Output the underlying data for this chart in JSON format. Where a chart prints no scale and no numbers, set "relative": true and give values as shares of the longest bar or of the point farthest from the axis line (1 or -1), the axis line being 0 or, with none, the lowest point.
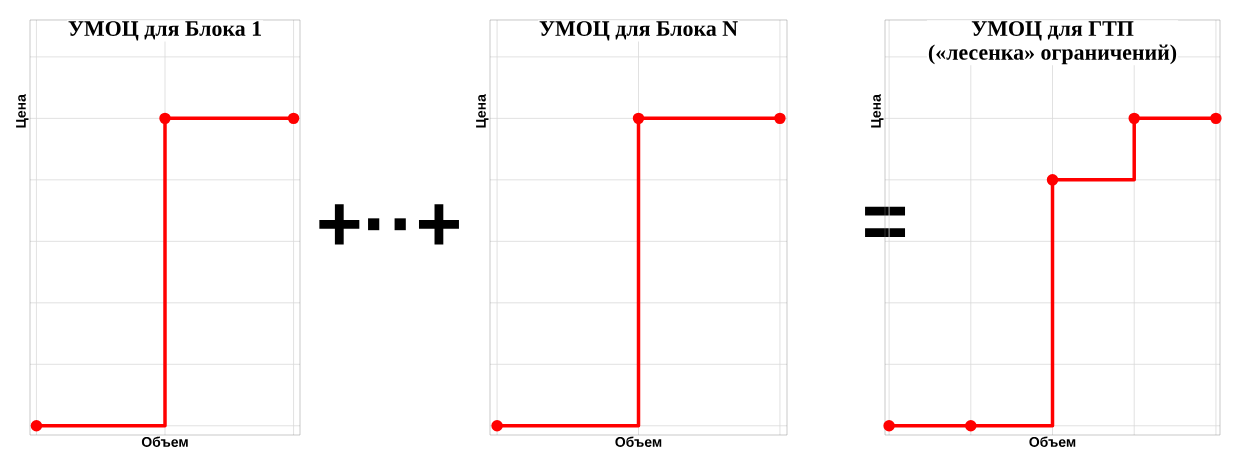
{
  "chart_data": [
    {
      "type": "step",
      "title": "УМОЦ для Блока 1",
      "xlabel": "Объем",
      "ylabel": "Цена",
      "relative": true,
      "categories": [
        null,
        null,
        null
      ],
      "values": [
        0,
        1,
        1
      ],
      "color": "#ff0000",
      "marker": "circle",
      "grid": true,
      "annotations": [
        "+··+"
      ]
    },
    {
      "type": "step",
      "title": "УМОЦ для Блока N",
      "xlabel": "Объем",
      "ylabel": "Цена",
      "relative": true,
      "categories": [
        null,
        null,
        null
      ],
      "values": [
        0,
        1,
        1
      ],
      "color": "#ff0000",
      "marker": "circle",
      "grid": true,
      "annotations": [
        "="
      ]
    },
    {
      "type": "step",
      "title": "УМОЦ для ГТП",
      "subtitle": "(«лесенка» ограничений)",
      "xlabel": "Объем",
      "ylabel": "Цена",
      "relative": true,
      "categories": [
        null,
        null,
        null,
        null,
        null
      ],
      "values": [
        0,
        0,
        0.8,
        1,
        1
      ],
      "color": "#ff0000",
      "marker": "circle",
      "grid": true
    }
  ]
}
